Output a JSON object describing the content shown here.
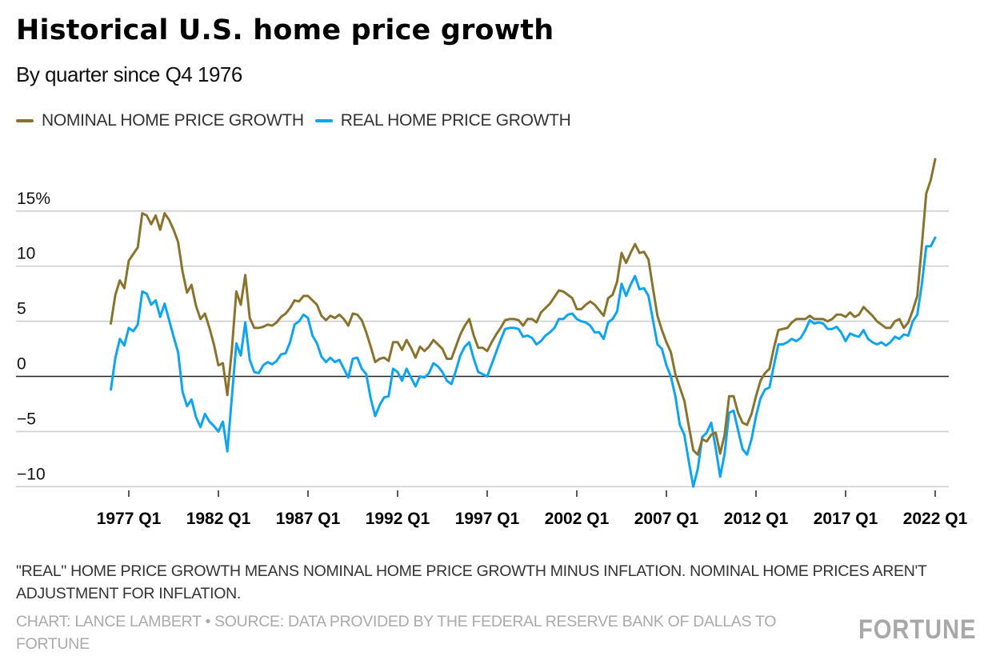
{
  "header": {
    "title": "Historical U.S. home price growth",
    "subtitle": "By quarter since Q4 1976"
  },
  "legend": [
    {
      "label": "NOMINAL HOME PRICE GROWTH",
      "color": "#8a742d"
    },
    {
      "label": "REAL HOME PRICE GROWTH",
      "color": "#0ea5f0"
    }
  ],
  "footer": {
    "note": "\"REAL\" HOME PRICE GROWTH MEANS NOMINAL HOME PRICE GROWTH MINUS INFLATION. NOMINAL HOME PRICES AREN'T ADJUSTMENT FOR INFLATION.",
    "credit": "CHART: LANCE LAMBERT • SOURCE: DATA PROVIDED BY THE FEDERAL RESERVE BANK OF DALLAS TO FORTUNE",
    "logo": "FORTUNE"
  },
  "chart_data": {
    "type": "line",
    "title": "Historical U.S. home price growth",
    "subtitle": "By quarter since Q4 1976",
    "xlabel": "",
    "ylabel": "",
    "x_start_year": 1976.0,
    "x_step_years": 0.25,
    "xlim": [
      1976.0,
      2022.0
    ],
    "ylim": [
      -10,
      20
    ],
    "y_ticks": [
      {
        "value": 15,
        "label": "15%"
      },
      {
        "value": 10,
        "label": "10"
      },
      {
        "value": 5,
        "label": "5"
      },
      {
        "value": 0,
        "label": "0"
      },
      {
        "value": -5,
        "label": "−5"
      },
      {
        "value": -10,
        "label": "−10"
      }
    ],
    "x_ticks": [
      {
        "value": 1977,
        "label": "1977 Q1"
      },
      {
        "value": 1982,
        "label": "1982 Q1"
      },
      {
        "value": 1987,
        "label": "1987 Q1"
      },
      {
        "value": 1992,
        "label": "1992 Q1"
      },
      {
        "value": 1997,
        "label": "1997 Q1"
      },
      {
        "value": 2002,
        "label": "2002 Q1"
      },
      {
        "value": 2007,
        "label": "2007 Q1"
      },
      {
        "value": 2012,
        "label": "2012 Q1"
      },
      {
        "value": 2017,
        "label": "2017 Q1"
      },
      {
        "value": 2022,
        "label": "2022 Q1"
      }
    ],
    "grid": true,
    "legend_position": "top-left",
    "series": [
      {
        "name": "NOMINAL HOME PRICE GROWTH",
        "color": "#8a742d",
        "values": [
          4.8,
          7.4,
          8.7,
          8.0,
          10.5,
          11.1,
          11.7,
          14.8,
          14.6,
          13.8,
          14.6,
          13.3,
          14.8,
          14.2,
          13.3,
          12.2,
          9.5,
          7.6,
          8.3,
          6.4,
          5.2,
          5.7,
          4.4,
          2.9,
          1.0,
          1.2,
          -1.7,
          2.4,
          7.7,
          6.5,
          9.2,
          5.3,
          4.4,
          4.4,
          4.5,
          4.7,
          4.6,
          4.9,
          5.4,
          5.7,
          6.2,
          6.9,
          6.8,
          7.3,
          7.3,
          6.9,
          6.5,
          5.5,
          5.1,
          5.5,
          5.3,
          5.6,
          5.2,
          4.6,
          5.7,
          5.6,
          5.1,
          4.0,
          2.7,
          1.3,
          1.6,
          1.7,
          1.4,
          3.1,
          3.1,
          2.4,
          3.3,
          2.6,
          1.7,
          2.7,
          2.3,
          2.7,
          3.3,
          2.9,
          2.5,
          1.6,
          1.6,
          2.7,
          3.8,
          4.6,
          5.2,
          3.7,
          2.6,
          2.6,
          2.3,
          3.1,
          3.8,
          4.4,
          5.1,
          5.2,
          5.2,
          5.1,
          4.6,
          5.2,
          5.2,
          4.9,
          5.8,
          6.2,
          6.6,
          7.2,
          7.8,
          7.7,
          7.4,
          7.1,
          6.1,
          6.1,
          6.5,
          6.8,
          6.5,
          6.0,
          5.5,
          7.1,
          7.4,
          8.6,
          11.2,
          10.3,
          11.2,
          12.0,
          11.2,
          11.3,
          10.6,
          8.0,
          5.5,
          4.2,
          3.1,
          2.2,
          0.2,
          -1.0,
          -2.2,
          -4.5,
          -6.7,
          -7.1,
          -5.7,
          -5.9,
          -5.3,
          -5.1,
          -7.0,
          -5.3,
          -1.8,
          -1.8,
          -3.3,
          -4.2,
          -4.4,
          -3.4,
          -1.8,
          -0.4,
          0.3,
          0.7,
          2.6,
          4.2,
          4.3,
          4.4,
          4.9,
          5.2,
          5.2,
          5.2,
          5.5,
          5.2,
          5.2,
          5.2,
          5.0,
          5.2,
          5.6,
          5.6,
          5.4,
          5.8,
          5.4,
          5.6,
          6.3,
          5.9,
          5.5,
          5.0,
          4.7,
          4.4,
          4.4,
          5.0,
          5.2,
          4.4,
          4.9,
          6.0,
          7.3,
          11.8,
          16.6,
          17.8,
          19.7
        ]
      },
      {
        "name": "REAL HOME PRICE GROWTH",
        "color": "#0ea5f0",
        "values": [
          -1.2,
          1.7,
          3.4,
          2.8,
          4.4,
          4.1,
          4.7,
          7.7,
          7.5,
          6.5,
          6.9,
          5.4,
          6.6,
          5.1,
          3.6,
          2.2,
          -1.4,
          -2.7,
          -2.1,
          -3.7,
          -4.6,
          -3.4,
          -4.1,
          -4.5,
          -5.0,
          -4.1,
          -6.8,
          -1.9,
          3.0,
          1.9,
          4.9,
          1.5,
          0.4,
          0.3,
          1.0,
          1.3,
          1.1,
          1.4,
          2.0,
          2.1,
          3.1,
          4.7,
          5.0,
          5.6,
          5.3,
          3.7,
          3.0,
          1.8,
          1.3,
          1.7,
          1.3,
          1.5,
          0.7,
          -0.1,
          1.6,
          1.7,
          0.7,
          0.2,
          -2.0,
          -3.6,
          -2.6,
          -1.9,
          -1.8,
          0.7,
          0.4,
          -0.4,
          0.7,
          -0.1,
          -0.9,
          0.0,
          -0.1,
          0.3,
          1.2,
          0.9,
          0.4,
          -0.4,
          -0.7,
          0.5,
          1.9,
          2.7,
          3.1,
          1.6,
          0.4,
          0.2,
          0.0,
          1.1,
          2.2,
          3.3,
          4.3,
          4.4,
          4.4,
          4.3,
          3.6,
          3.7,
          3.5,
          2.9,
          3.2,
          3.7,
          4.0,
          4.4,
          5.2,
          5.2,
          5.6,
          5.7,
          5.2,
          5.0,
          4.9,
          4.6,
          4.0,
          4.0,
          3.4,
          4.9,
          5.2,
          5.9,
          8.4,
          7.3,
          8.3,
          9.1,
          7.9,
          8.0,
          7.3,
          5.1,
          2.9,
          2.5,
          1.0,
          0.0,
          -1.8,
          -4.4,
          -5.3,
          -7.7,
          -10.0,
          -8.4,
          -5.5,
          -5.1,
          -4.2,
          -6.5,
          -9.1,
          -7.0,
          -3.3,
          -3.1,
          -4.9,
          -6.6,
          -7.1,
          -5.7,
          -3.6,
          -2.0,
          -1.2,
          -1.0,
          1.0,
          2.9,
          2.9,
          3.1,
          3.4,
          3.2,
          3.5,
          4.2,
          5.1,
          4.8,
          4.9,
          4.8,
          4.3,
          4.3,
          4.5,
          4.0,
          3.2,
          3.9,
          3.7,
          3.6,
          4.2,
          3.4,
          3.1,
          2.9,
          3.1,
          2.8,
          3.1,
          3.6,
          3.4,
          3.8,
          3.7,
          5.0,
          5.6,
          8.3,
          11.8,
          11.8,
          12.6
        ]
      }
    ]
  }
}
